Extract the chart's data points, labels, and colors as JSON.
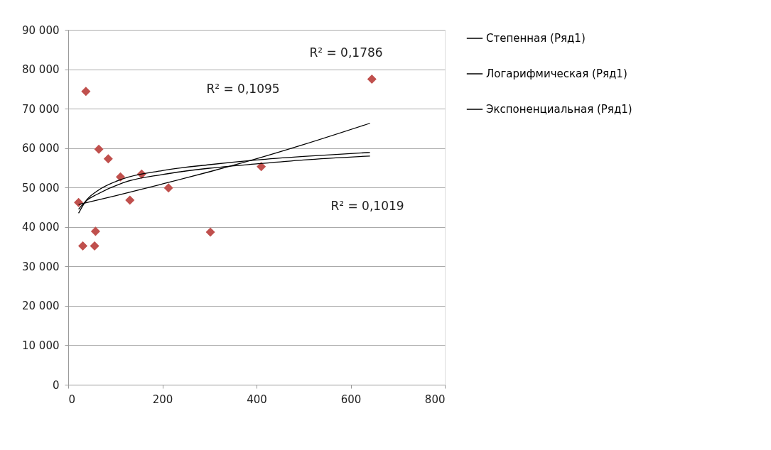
{
  "chart_data": {
    "type": "scatter",
    "xlim": [
      0,
      800
    ],
    "xticks": [
      0,
      200,
      400,
      600,
      800
    ],
    "ylim": [
      0,
      90000
    ],
    "yticks": [
      {
        "value": 0,
        "label": "0"
      },
      {
        "value": 10000,
        "label": "10 000"
      },
      {
        "value": 20000,
        "label": "20 000"
      },
      {
        "value": 30000,
        "label": "30 000"
      },
      {
        "value": 40000,
        "label": "40 000"
      },
      {
        "value": 50000,
        "label": "50 000"
      },
      {
        "value": 60000,
        "label": "60 000"
      },
      {
        "value": 70000,
        "label": "70 000"
      },
      {
        "value": 80000,
        "label": "80 000"
      },
      {
        "value": 90000,
        "label": "90 000"
      }
    ],
    "grid": "y",
    "legend": "right",
    "series": [
      {
        "marker": "diamond",
        "color": "#c0504d",
        "x": [
          22,
          31,
          37.5,
          56,
          58,
          65,
          85,
          111,
          131,
          156,
          213,
          302,
          410,
          645
        ],
        "values": [
          46200,
          35200,
          74400,
          35200,
          38900,
          59700,
          57300,
          52700,
          46800,
          53400,
          49900,
          38700,
          55300,
          77500
        ]
      },
      {
        "type": "line",
        "name": "Степенная (Ряд1)",
        "color": "#000000",
        "x": [
          22,
          40,
          60,
          116,
          200,
          300,
          400,
          500,
          641
        ],
        "values": [
          44500,
          46800,
          48200,
          51200,
          53300,
          54900,
          56000,
          57000,
          58000
        ]
      },
      {
        "type": "line",
        "name": "Логарифмическая (Ряд1)",
        "color": "#000000",
        "x": [
          22,
          40,
          60,
          116,
          200,
          300,
          400,
          500,
          641
        ],
        "values": [
          43500,
          47000,
          49000,
          52200,
          54300,
          55800,
          57000,
          57900,
          58900
        ]
      },
      {
        "type": "line",
        "name": "Экспоненциальная (Ряд1)",
        "color": "#000000",
        "x": [
          22,
          100,
          200,
          300,
          400,
          500,
          641
        ],
        "values": [
          45700,
          47900,
          50900,
          54000,
          57300,
          60900,
          66300
        ]
      }
    ],
    "annotations": [
      "R² = 0,1786",
      "R² = 0,1095",
      "R² = 0,1019"
    ]
  }
}
